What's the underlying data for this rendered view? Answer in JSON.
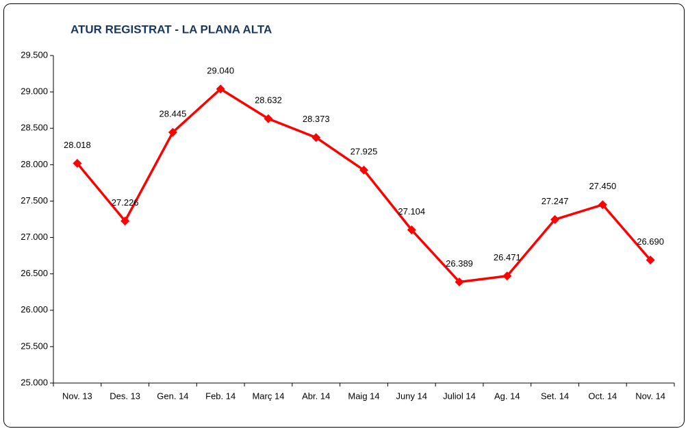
{
  "chart_data": {
    "type": "line",
    "title": "ATUR REGISTRAT - LA PLANA ALTA",
    "categories": [
      "Nov. 13",
      "Des. 13",
      "Gen. 14",
      "Feb. 14",
      "Març 14",
      "Abr. 14",
      "Maig 14",
      "Juny 14",
      "Juliol 14",
      "Ag. 14",
      "Set. 14",
      "Oct. 14",
      "Nov. 14"
    ],
    "series": [
      {
        "name": "Atur registrat",
        "color": "#ff0000",
        "values": [
          28018,
          27226,
          28445,
          29040,
          28632,
          28373,
          27925,
          27104,
          26389,
          26471,
          27247,
          27450,
          26690
        ],
        "value_labels": [
          "28.018",
          "27.226",
          "28.445",
          "29.040",
          "28.632",
          "28.373",
          "27.925",
          "27.104",
          "26.389",
          "26.471",
          "27.247",
          "27.450",
          "26.690"
        ]
      }
    ],
    "ylim": [
      25000,
      29500
    ],
    "yticks": [
      {
        "value": 25000,
        "label": "25.000"
      },
      {
        "value": 25500,
        "label": "25.500"
      },
      {
        "value": 26000,
        "label": "26.000"
      },
      {
        "value": 26500,
        "label": "26.500"
      },
      {
        "value": 27000,
        "label": "27.000"
      },
      {
        "value": 27500,
        "label": "27.500"
      },
      {
        "value": 28000,
        "label": "28.000"
      },
      {
        "value": 28500,
        "label": "28.500"
      },
      {
        "value": 29000,
        "label": "29.000"
      },
      {
        "value": 29500,
        "label": "29.500"
      }
    ],
    "grid": false
  }
}
